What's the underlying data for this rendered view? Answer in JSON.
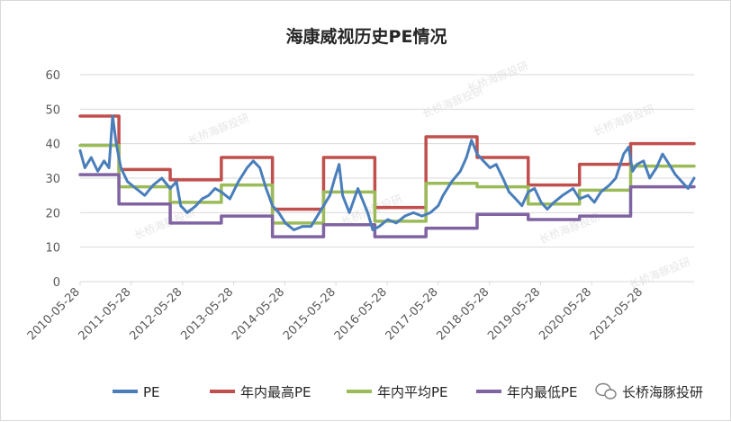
{
  "chart_data": {
    "type": "line",
    "title": "海康威视历史PE情况",
    "xlabel": "",
    "ylabel": "",
    "ylim": [
      0,
      60
    ],
    "yticks": [
      0,
      10,
      20,
      30,
      40,
      50,
      60
    ],
    "x_range": [
      "2010-05-28",
      "2022-05-28"
    ],
    "xticks": [
      "2010-05-28",
      "2011-05-28",
      "2012-05-28",
      "2013-05-28",
      "2014-05-28",
      "2015-05-28",
      "2016-05-28",
      "2017-05-28",
      "2018-05-28",
      "2019-05-28",
      "2020-05-28",
      "2021-05-28"
    ],
    "grid": "horizontal",
    "legend": "bottom",
    "series": [
      {
        "name": "PE",
        "color": "#4a7ebb",
        "points": [
          [
            "2010-05-28",
            38
          ],
          [
            "2010-07-01",
            33
          ],
          [
            "2010-08-15",
            36
          ],
          [
            "2010-10-01",
            32
          ],
          [
            "2010-11-15",
            35
          ],
          [
            "2010-12-20",
            33
          ],
          [
            "2011-01-15",
            48
          ],
          [
            "2011-02-10",
            40
          ],
          [
            "2011-03-15",
            33
          ],
          [
            "2011-05-01",
            29
          ],
          [
            "2011-07-01",
            27
          ],
          [
            "2011-09-01",
            25
          ],
          [
            "2011-11-01",
            28
          ],
          [
            "2012-01-01",
            30
          ],
          [
            "2012-03-01",
            27
          ],
          [
            "2012-04-15",
            29
          ],
          [
            "2012-05-15",
            22
          ],
          [
            "2012-07-01",
            20
          ],
          [
            "2012-09-01",
            22
          ],
          [
            "2012-10-15",
            24
          ],
          [
            "2012-12-01",
            25
          ],
          [
            "2013-01-15",
            27
          ],
          [
            "2013-03-01",
            26
          ],
          [
            "2013-05-01",
            24
          ],
          [
            "2013-07-01",
            29
          ],
          [
            "2013-09-01",
            33
          ],
          [
            "2013-10-15",
            35
          ],
          [
            "2013-12-01",
            33
          ],
          [
            "2014-01-15",
            27
          ],
          [
            "2014-03-01",
            22
          ],
          [
            "2014-04-15",
            20
          ],
          [
            "2014-06-01",
            17
          ],
          [
            "2014-08-01",
            15
          ],
          [
            "2014-10-01",
            16
          ],
          [
            "2014-12-01",
            16
          ],
          [
            "2015-01-15",
            19
          ],
          [
            "2015-03-01",
            22
          ],
          [
            "2015-04-15",
            25
          ],
          [
            "2015-05-20",
            30
          ],
          [
            "2015-06-20",
            34
          ],
          [
            "2015-07-15",
            25
          ],
          [
            "2015-09-01",
            20
          ],
          [
            "2015-11-01",
            27
          ],
          [
            "2016-01-10",
            20
          ],
          [
            "2016-02-15",
            15
          ],
          [
            "2016-04-01",
            16
          ],
          [
            "2016-06-01",
            18
          ],
          [
            "2016-08-01",
            17
          ],
          [
            "2016-10-01",
            19
          ],
          [
            "2016-12-01",
            20
          ],
          [
            "2017-02-01",
            19
          ],
          [
            "2017-04-01",
            20
          ],
          [
            "2017-05-28",
            22
          ],
          [
            "2017-07-01",
            25
          ],
          [
            "2017-09-01",
            29
          ],
          [
            "2017-11-01",
            32
          ],
          [
            "2017-12-15",
            36
          ],
          [
            "2018-01-20",
            41
          ],
          [
            "2018-03-01",
            37
          ],
          [
            "2018-04-15",
            35
          ],
          [
            "2018-06-01",
            33
          ],
          [
            "2018-07-15",
            34
          ],
          [
            "2018-09-01",
            30
          ],
          [
            "2018-10-15",
            26
          ],
          [
            "2018-12-01",
            24
          ],
          [
            "2019-01-15",
            22
          ],
          [
            "2019-03-01",
            26
          ],
          [
            "2019-04-15",
            27
          ],
          [
            "2019-06-01",
            23
          ],
          [
            "2019-07-15",
            21
          ],
          [
            "2019-09-01",
            23
          ],
          [
            "2019-11-01",
            25
          ],
          [
            "2020-01-15",
            27
          ],
          [
            "2020-03-01",
            24
          ],
          [
            "2020-05-01",
            25
          ],
          [
            "2020-06-15",
            23
          ],
          [
            "2020-08-01",
            26
          ],
          [
            "2020-10-01",
            28
          ],
          [
            "2020-11-15",
            30
          ],
          [
            "2021-01-10",
            37
          ],
          [
            "2021-02-15",
            39
          ],
          [
            "2021-03-15",
            32
          ],
          [
            "2021-04-15",
            34
          ],
          [
            "2021-06-01",
            35
          ],
          [
            "2021-07-15",
            30
          ],
          [
            "2021-09-01",
            33
          ],
          [
            "2021-10-15",
            37
          ],
          [
            "2021-12-01",
            34
          ],
          [
            "2022-01-15",
            31
          ],
          [
            "2022-03-01",
            29
          ],
          [
            "2022-04-15",
            27
          ],
          [
            "2022-05-28",
            30
          ]
        ]
      },
      {
        "name": "年内最高PE",
        "color": "#c0504d",
        "steps": [
          [
            "2010-05-28",
            "2011-03-01",
            48
          ],
          [
            "2011-03-01",
            "2012-03-01",
            32.5
          ],
          [
            "2012-03-01",
            "2013-03-01",
            29.5
          ],
          [
            "2013-03-01",
            "2014-03-01",
            36
          ],
          [
            "2014-03-01",
            "2015-03-01",
            21
          ],
          [
            "2015-03-01",
            "2016-03-01",
            36
          ],
          [
            "2016-03-01",
            "2017-03-01",
            21.5
          ],
          [
            "2017-03-01",
            "2018-03-01",
            42
          ],
          [
            "2018-03-01",
            "2019-03-01",
            36
          ],
          [
            "2019-03-01",
            "2020-03-01",
            28
          ],
          [
            "2020-03-01",
            "2021-03-01",
            34
          ],
          [
            "2021-03-01",
            "2022-05-28",
            40
          ]
        ]
      },
      {
        "name": "年内平均PE",
        "color": "#9bbb59",
        "steps": [
          [
            "2010-05-28",
            "2011-03-01",
            39.5
          ],
          [
            "2011-03-01",
            "2012-03-01",
            27.5
          ],
          [
            "2012-03-01",
            "2013-03-01",
            23
          ],
          [
            "2013-03-01",
            "2014-03-01",
            28
          ],
          [
            "2014-03-01",
            "2015-03-01",
            17
          ],
          [
            "2015-03-01",
            "2016-03-01",
            26
          ],
          [
            "2016-03-01",
            "2017-03-01",
            17.5
          ],
          [
            "2017-03-01",
            "2018-03-01",
            28.5
          ],
          [
            "2018-03-01",
            "2019-03-01",
            27.5
          ],
          [
            "2019-03-01",
            "2020-03-01",
            22.5
          ],
          [
            "2020-03-01",
            "2021-03-01",
            26.5
          ],
          [
            "2021-03-01",
            "2022-05-28",
            33.5
          ]
        ]
      },
      {
        "name": "年内最低PE",
        "color": "#8064a2",
        "steps": [
          [
            "2010-05-28",
            "2011-03-01",
            31
          ],
          [
            "2011-03-01",
            "2012-03-01",
            22.5
          ],
          [
            "2012-03-01",
            "2013-03-01",
            17
          ],
          [
            "2013-03-01",
            "2014-03-01",
            19
          ],
          [
            "2014-03-01",
            "2015-03-01",
            13
          ],
          [
            "2015-03-01",
            "2016-03-01",
            16.5
          ],
          [
            "2016-03-01",
            "2017-03-01",
            13
          ],
          [
            "2017-03-01",
            "2018-03-01",
            15.5
          ],
          [
            "2018-03-01",
            "2019-03-01",
            19.5
          ],
          [
            "2019-03-01",
            "2020-03-01",
            18
          ],
          [
            "2020-03-01",
            "2021-03-01",
            19
          ],
          [
            "2021-03-01",
            "2022-05-28",
            27.5
          ]
        ]
      }
    ],
    "legend_entries": [
      "PE",
      "年内最高PE",
      "年内平均PE",
      "年内最低PE"
    ],
    "annotations": [
      "长桥海豚投研"
    ]
  },
  "watermark": {
    "text": "长桥海豚投研"
  },
  "brand": {
    "label": "长桥海豚投研",
    "icon": "wechat-icon"
  }
}
